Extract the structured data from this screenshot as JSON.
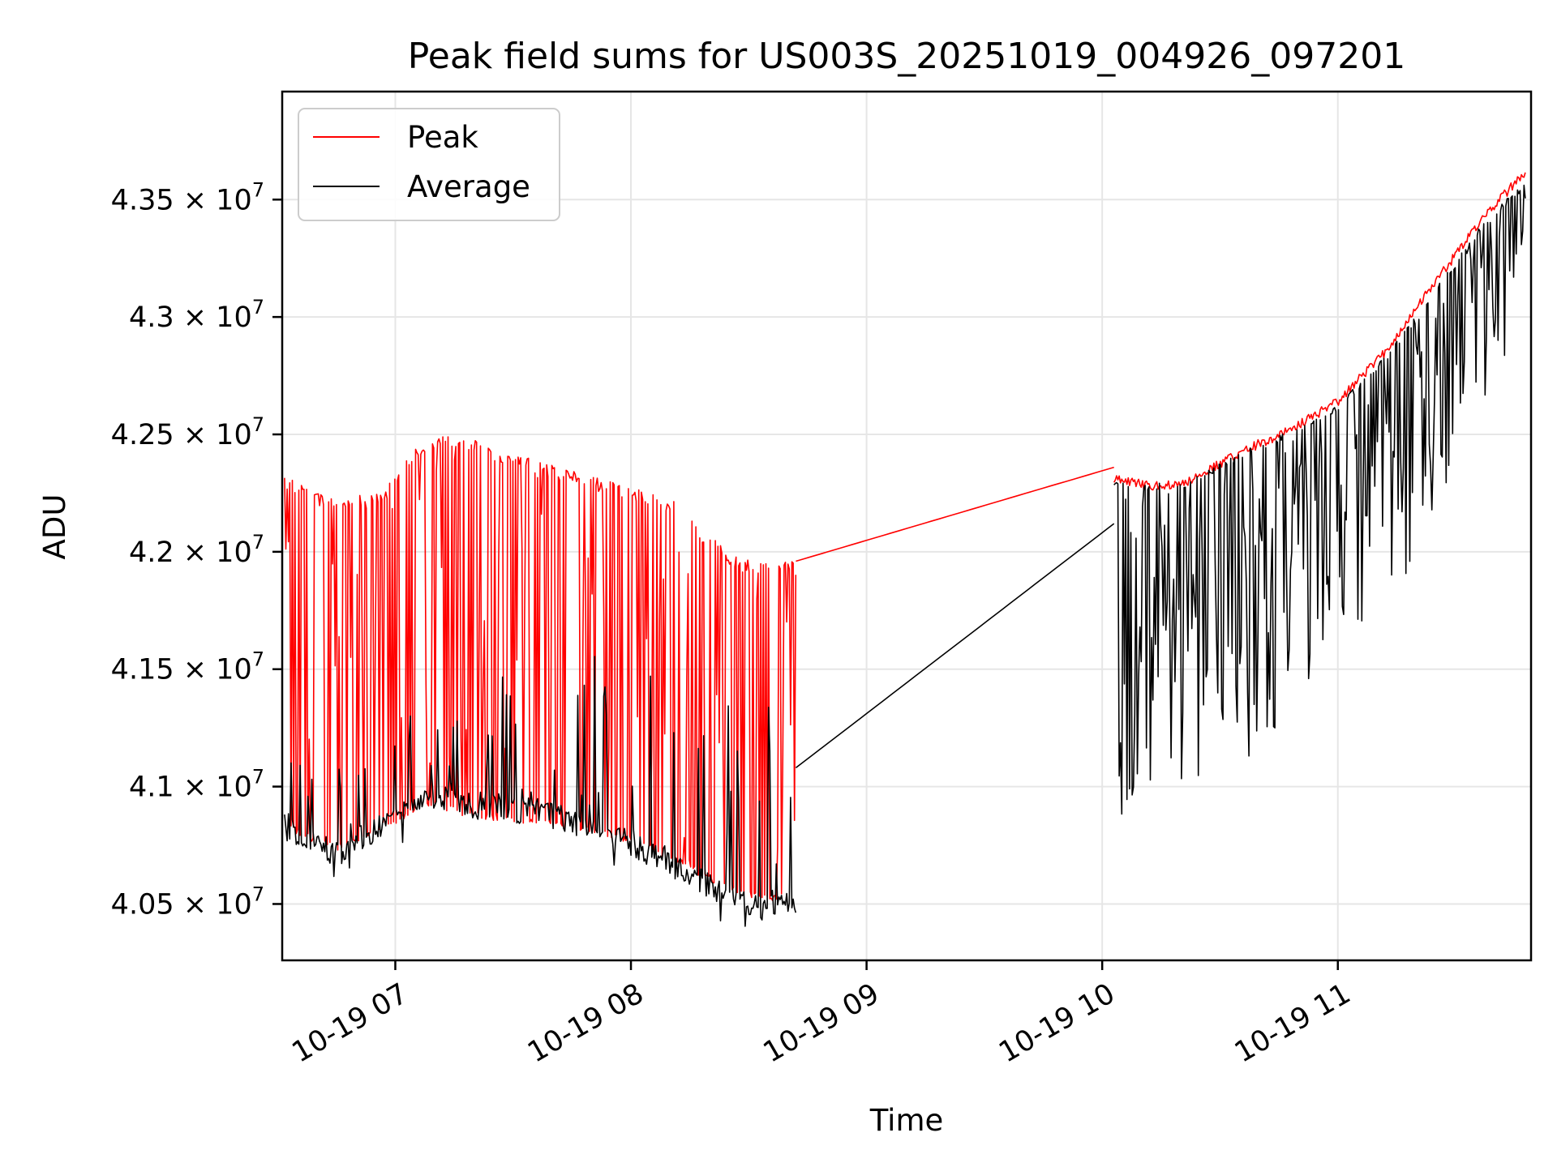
{
  "chart_data": {
    "type": "line",
    "title": "Peak field sums for US003S_20251019_004926_097201",
    "xlabel": "Time",
    "ylabel": "ADU",
    "x_unit": "hours (10-19)",
    "xlim": [
      6.52,
      11.82
    ],
    "ylim": [
      40260000,
      43960000
    ],
    "grid": true,
    "legend_position": "upper-left",
    "x_ticks": [
      {
        "value": 7,
        "label": "10-19 07"
      },
      {
        "value": 8,
        "label": "10-19 08"
      },
      {
        "value": 9,
        "label": "10-19 09"
      },
      {
        "value": 10,
        "label": "10-19 10"
      },
      {
        "value": 11,
        "label": "10-19 11"
      }
    ],
    "y_ticks": [
      {
        "value": 40500000,
        "mantissa": "4.05"
      },
      {
        "value": 41000000,
        "mantissa": "4.1"
      },
      {
        "value": 41500000,
        "mantissa": "4.15"
      },
      {
        "value": 42000000,
        "mantissa": "4.2"
      },
      {
        "value": 42500000,
        "mantissa": "4.25"
      },
      {
        "value": 43000000,
        "mantissa": "4.3"
      },
      {
        "value": 43500000,
        "mantissa": "4.35"
      }
    ],
    "y_tick_multiplier": "× 10",
    "y_tick_exponent": "7",
    "series": [
      {
        "name": "Peak",
        "color": "#ff0000",
        "segments": [
          {
            "x_start": 6.53,
            "x_end": 8.7,
            "baseline_x": [
              6.53,
              6.75,
              6.95,
              7.15,
              7.35,
              7.6,
              7.8,
              8.0,
              8.2,
              8.4,
              8.55,
              8.7
            ],
            "baseline_y": [
              40820000,
              40720000,
              40820000,
              40910000,
              40860000,
              40840000,
              40800000,
              40760000,
              40670000,
              40560000,
              40510000,
              40520000
            ],
            "envelope_x": [
              6.53,
              6.75,
              6.95,
              7.1,
              7.25,
              7.5,
              7.7,
              8.0,
              8.2,
              8.4,
              8.55,
              8.7
            ],
            "envelope_y": [
              42330000,
              42220000,
              42260000,
              42460000,
              42510000,
              42420000,
              42360000,
              42280000,
              42210000,
              42010000,
              41950000,
              41960000
            ]
          },
          {
            "x_start": 8.7,
            "x_end": 10.05,
            "baseline_x": [
              8.7,
              10.05
            ],
            "baseline_y": [
              41960000,
              42360000
            ],
            "envelope_x": [
              8.7,
              10.05
            ],
            "envelope_y": [
              41960000,
              42360000
            ]
          },
          {
            "x_start": 10.05,
            "x_end": 11.8,
            "baseline_x": [
              10.05,
              10.2,
              10.35,
              10.6,
              10.8,
              11.0,
              11.2,
              11.4,
              11.6,
              11.75,
              11.8
            ],
            "baseline_y": [
              42330000,
              42300000,
              42310000,
              42450000,
              42540000,
              42660000,
              42870000,
              43150000,
              43420000,
              43590000,
              43620000
            ],
            "envelope_x": [
              10.05,
              10.2,
              10.35,
              10.6,
              10.8,
              11.0,
              11.2,
              11.4,
              11.6,
              11.75,
              11.8
            ],
            "envelope_y": [
              42330000,
              42300000,
              42310000,
              42450000,
              42540000,
              42660000,
              42870000,
              43150000,
              43420000,
              43590000,
              43620000
            ]
          }
        ]
      },
      {
        "name": "Average",
        "color": "#000000",
        "segments": [
          {
            "x_start": 6.53,
            "x_end": 8.7,
            "baseline_x": [
              6.53,
              6.75,
              6.95,
              7.15,
              7.35,
              7.6,
              7.8,
              8.0,
              8.2,
              8.4,
              8.55,
              8.7
            ],
            "baseline_y": [
              40780000,
              40650000,
              40780000,
              40910000,
              40860000,
              40830000,
              40780000,
              40700000,
              40600000,
              40480000,
              40430000,
              40460000
            ],
            "envelope_x": [
              6.53,
              6.75,
              6.95,
              7.15,
              7.35,
              7.6,
              7.8,
              8.0,
              8.2,
              8.4,
              8.55,
              8.7
            ],
            "envelope_y": [
              41200000,
              41150000,
              41300000,
              41450000,
              41500000,
              41550000,
              41600000,
              41500000,
              41450000,
              41400000,
              41500000,
              41500000
            ]
          },
          {
            "x_start": 8.7,
            "x_end": 10.05,
            "baseline_x": [
              8.7,
              10.05
            ],
            "baseline_y": [
              41080000,
              42120000
            ],
            "envelope_x": [
              8.7,
              10.05
            ],
            "envelope_y": [
              41080000,
              42120000
            ]
          },
          {
            "x_start": 10.05,
            "x_end": 11.8,
            "baseline_x": [
              10.05,
              10.2,
              10.35,
              10.6,
              10.8,
              11.0,
              11.2,
              11.4,
              11.6,
              11.75,
              11.8
            ],
            "baseline_y": [
              40800000,
              40850000,
              40950000,
              41100000,
              41300000,
              41500000,
              41750000,
              42100000,
              42500000,
              42900000,
              43000000
            ],
            "envelope_x": [
              10.05,
              10.2,
              10.35,
              10.6,
              10.8,
              11.0,
              11.2,
              11.4,
              11.6,
              11.75,
              11.8
            ],
            "envelope_y": [
              42300000,
              42290000,
              42300000,
              42430000,
              42520000,
              42630000,
              42830000,
              43100000,
              43380000,
              43540000,
              43580000
            ]
          }
        ]
      }
    ]
  }
}
